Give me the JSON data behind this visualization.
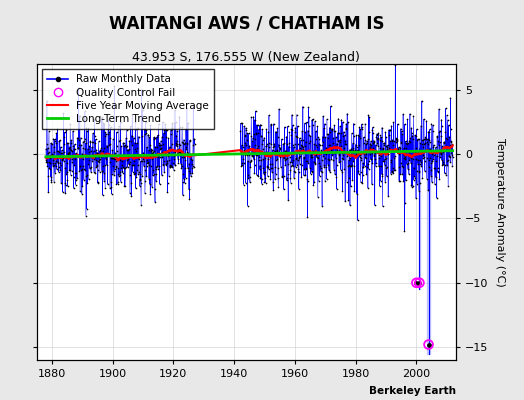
{
  "title": "WAITANGI AWS / CHATHAM IS",
  "subtitle": "43.953 S, 176.555 W (New Zealand)",
  "ylabel": "Temperature Anomaly (°C)",
  "watermark": "Berkeley Earth",
  "xlim": [
    1875,
    2013
  ],
  "ylim": [
    -16,
    7
  ],
  "yticks": [
    -15,
    -10,
    -5,
    0,
    5
  ],
  "xticks": [
    1880,
    1900,
    1920,
    1940,
    1960,
    1980,
    2000
  ],
  "seed": 42,
  "data_start_year": 1878,
  "data_end_year": 2011,
  "gap_start_year": 1927,
  "gap_end_year": 1941,
  "qc_points_at_neg10": [
    2000.0,
    2001.0
  ],
  "qc_point_at_neg15": 2004.0,
  "qc_spike_x": 2004.0,
  "line_color": "#0000ff",
  "dot_color": "#000000",
  "ma_color": "#ff0000",
  "trend_color": "#00cc00",
  "qc_color": "#ff00ff",
  "spike_fill_color": "#aaaaff",
  "background_color": "#e8e8e8",
  "plot_bg_color": "#ffffff",
  "grid_color": "#cccccc",
  "title_fontsize": 12,
  "subtitle_fontsize": 9,
  "axis_label_fontsize": 8,
  "tick_fontsize": 8,
  "legend_fontsize": 7.5
}
